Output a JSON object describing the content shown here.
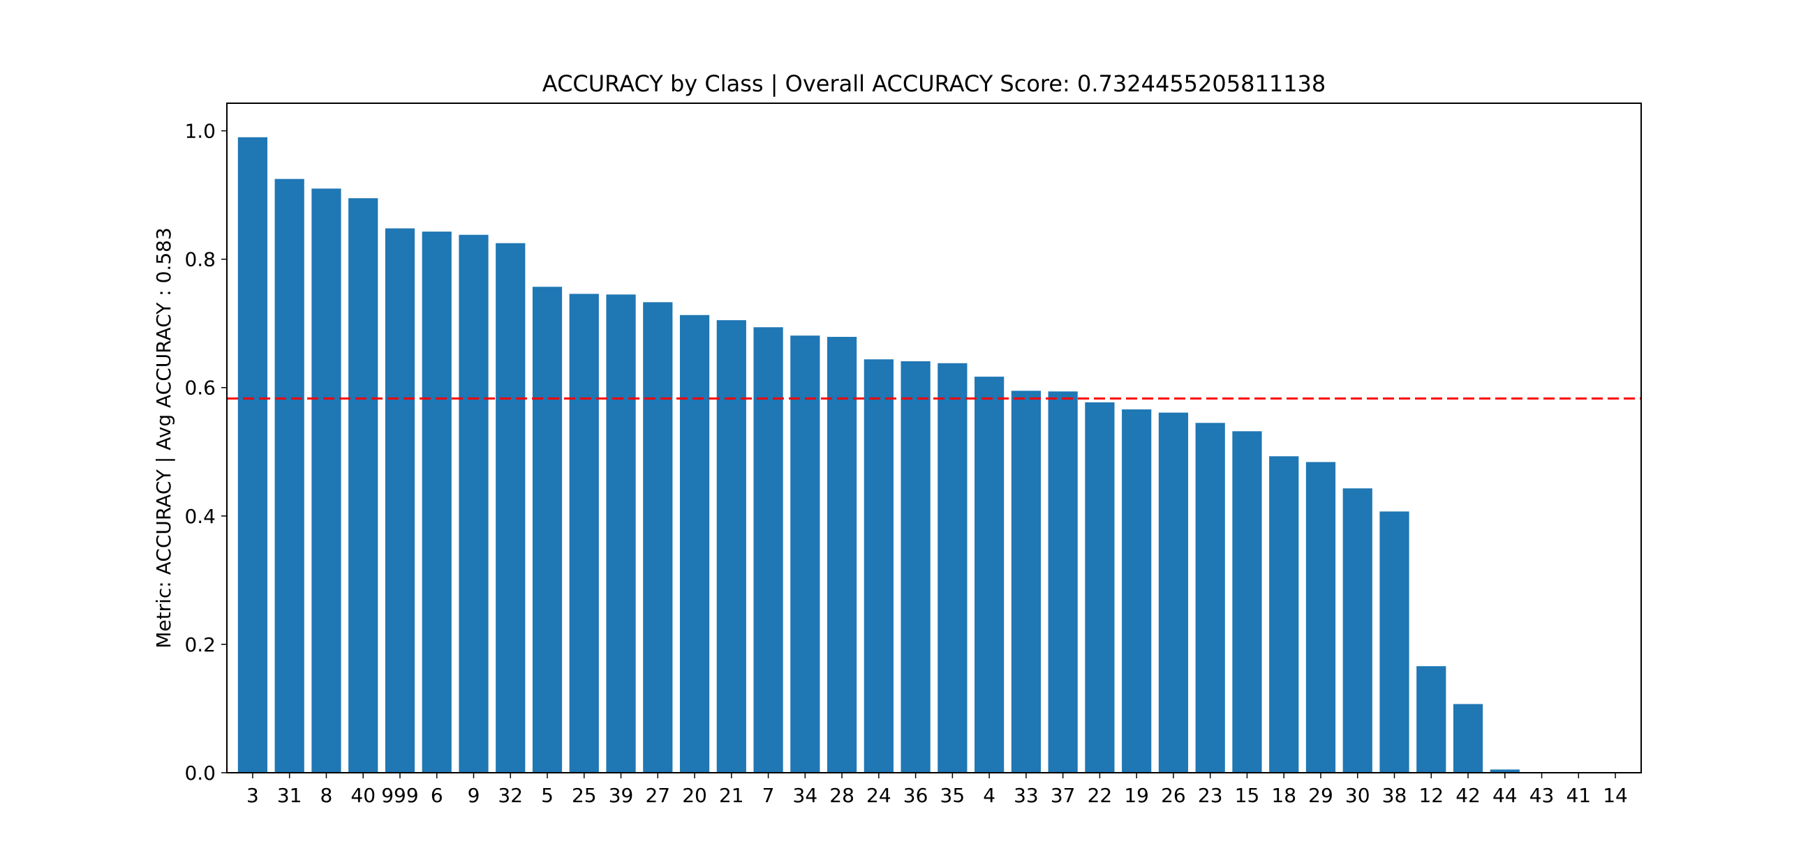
{
  "chart_data": {
    "type": "bar",
    "title": "ACCURACY by Class | Overall ACCURACY Score: 0.7324455205811138",
    "xlabel": "",
    "ylabel": "Metric: ACCURACY | Avg ACCURACY : 0.583",
    "categories": [
      "3",
      "31",
      "8",
      "40",
      "999",
      "6",
      "9",
      "32",
      "5",
      "25",
      "39",
      "27",
      "20",
      "21",
      "7",
      "34",
      "28",
      "24",
      "36",
      "35",
      "4",
      "33",
      "37",
      "22",
      "19",
      "26",
      "23",
      "15",
      "18",
      "29",
      "30",
      "38",
      "12",
      "42",
      "44",
      "43",
      "41",
      "14"
    ],
    "values": [
      0.99,
      0.925,
      0.91,
      0.895,
      0.848,
      0.843,
      0.838,
      0.825,
      0.757,
      0.746,
      0.745,
      0.733,
      0.713,
      0.705,
      0.694,
      0.681,
      0.679,
      0.644,
      0.641,
      0.638,
      0.617,
      0.595,
      0.594,
      0.577,
      0.566,
      0.561,
      0.545,
      0.532,
      0.493,
      0.484,
      0.443,
      0.407,
      0.166,
      0.107,
      0.005,
      0.0,
      0.0,
      0.0
    ],
    "ylim": [
      0.0,
      1.043
    ],
    "yticks": [
      "0.0",
      "0.2",
      "0.4",
      "0.6",
      "0.8",
      "1.0"
    ],
    "average_line": {
      "value": 0.583,
      "style": "dashed",
      "color": "#ff0000"
    },
    "bar_color": "#1f77b4",
    "grid": false,
    "legend": "none"
  }
}
